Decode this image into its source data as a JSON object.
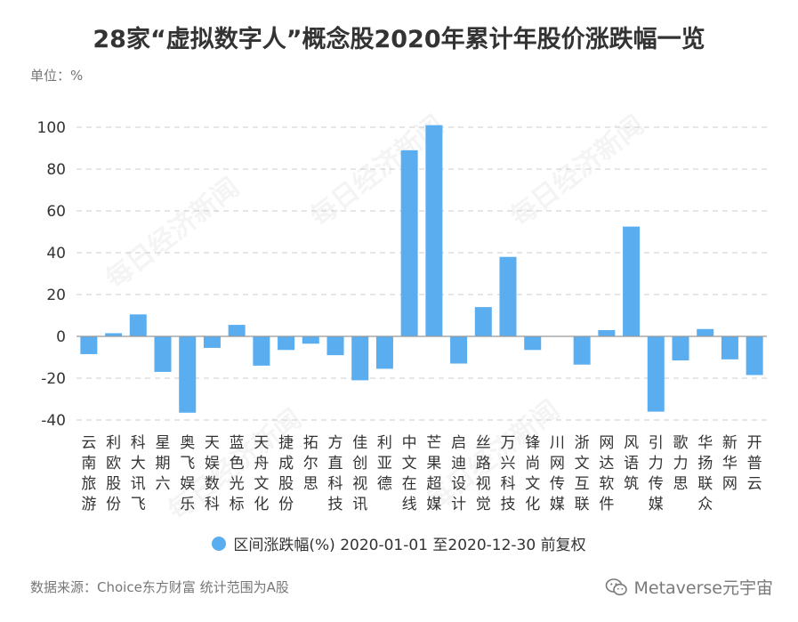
{
  "title": "28家“虚拟数字人”概念股2020年累计年股价涨跌幅一览",
  "unit": "单位：%",
  "source": "数据来源：Choice东方财富 统计范围为A股",
  "brand": {
    "name": "Metaverse元宇宙",
    "icon": "wechat-icon"
  },
  "watermark": "每日经济新闻",
  "colors": {
    "bar": "#5aaef0",
    "grid": "#cccccc",
    "axis": "#999999",
    "text": "#333333"
  },
  "chart_data": {
    "type": "bar",
    "categories": [
      "云南旅游",
      "利欧股份",
      "科大讯飞",
      "星期六",
      "奥飞娱乐",
      "天娱数科",
      "蓝色光标",
      "天舟文化",
      "捷成股份",
      "拓尔思",
      "方直科技",
      "佳创视讯",
      "利亚德",
      "中文在线",
      "芒果超媒",
      "启迪设计",
      "丝路视觉",
      "万兴科技",
      "锋尚文化",
      "川网传媒",
      "浙文互联",
      "网达软件",
      "风语筑",
      "引力传媒",
      "歌力思",
      "华扬联众",
      "新华网",
      "开普云"
    ],
    "series": [
      {
        "name": "区间涨跌幅(%) 2020-01-01 至2020-12-30 前复权",
        "values": [
          -8.5,
          1.5,
          10.5,
          -17,
          -36.5,
          -5.5,
          5.5,
          -14,
          -6.5,
          -3.5,
          -9,
          -21,
          -15.5,
          89,
          101,
          -13,
          14,
          38,
          -6.5,
          0,
          -13.5,
          3,
          52.5,
          -36,
          -11.5,
          3.5,
          -11,
          -18.5
        ]
      }
    ],
    "yticks": [
      -40,
      -20,
      0,
      20,
      40,
      60,
      80,
      100
    ],
    "ylim": [
      -40,
      100
    ],
    "grid": true,
    "legend": "bottom-center"
  }
}
